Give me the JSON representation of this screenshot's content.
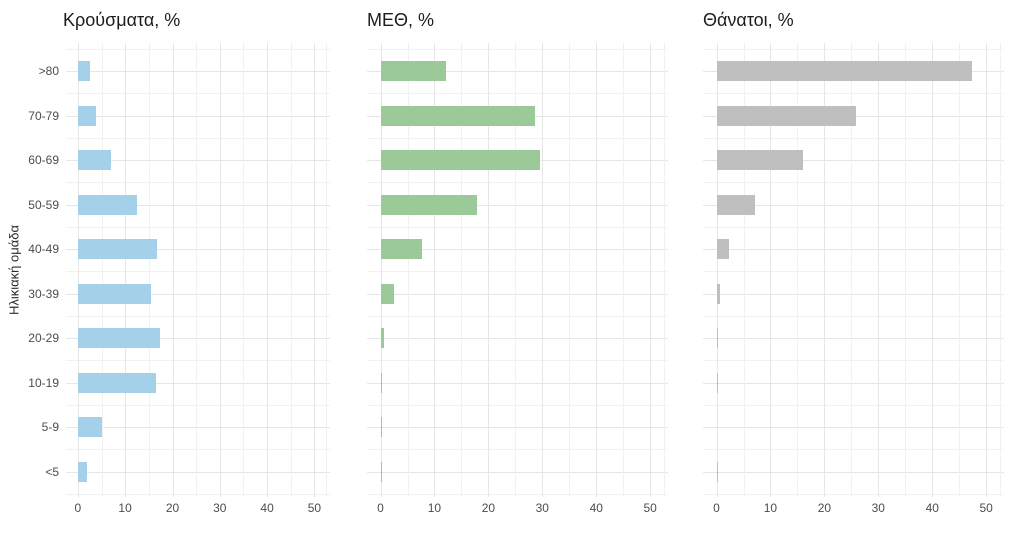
{
  "figure": {
    "background": "#ffffff",
    "y_axis_title": "Ηλικιακή ομάδα",
    "categories": [
      ">80",
      "70-79",
      "60-69",
      "50-59",
      "40-49",
      "30-39",
      "20-29",
      "10-19",
      "5-9",
      "<5"
    ],
    "x_ticks": [
      0,
      10,
      20,
      30,
      40,
      50
    ],
    "grid_major_color": "#e6e6e6",
    "grid_minor_color": "#f1f1f1",
    "text_color": "#4d4d4d",
    "title_color": "#1c1c1c"
  },
  "chart_data": [
    {
      "type": "bar",
      "orientation": "horizontal",
      "title": "Κρούσματα, %",
      "categories": [
        ">80",
        "70-79",
        "60-69",
        "50-59",
        "40-49",
        "30-39",
        "20-29",
        "10-19",
        "5-9",
        "<5"
      ],
      "values": [
        2.6,
        3.8,
        7.1,
        12.5,
        16.8,
        15.4,
        17.3,
        16.6,
        5.2,
        1.9
      ],
      "color": "#a4d1e9",
      "xlabel": "",
      "ylabel": "Ηλικιακή ομάδα",
      "xlim": [
        0,
        50
      ],
      "x_ticks": [
        0,
        10,
        20,
        30,
        40,
        50
      ],
      "grid": true,
      "legend": false
    },
    {
      "type": "bar",
      "orientation": "horizontal",
      "title": "ΜΕΘ, %",
      "categories": [
        ">80",
        "70-79",
        "60-69",
        "50-59",
        "40-49",
        "30-39",
        "20-29",
        "10-19",
        "5-9",
        "<5"
      ],
      "values": [
        12.2,
        28.6,
        29.6,
        17.9,
        7.7,
        2.5,
        0.7,
        0.2,
        0.1,
        0.1
      ],
      "color": "#9bc997",
      "xlabel": "",
      "ylabel": "",
      "xlim": [
        0,
        50
      ],
      "x_ticks": [
        0,
        10,
        20,
        30,
        40,
        50
      ],
      "grid": true,
      "legend": false
    },
    {
      "type": "bar",
      "orientation": "horizontal",
      "title": "Θάνατοι, %",
      "categories": [
        ">80",
        "70-79",
        "60-69",
        "50-59",
        "40-49",
        "30-39",
        "20-29",
        "10-19",
        "5-9",
        "<5"
      ],
      "values": [
        47.4,
        25.8,
        16.1,
        7.2,
        2.3,
        0.7,
        0.1,
        0.1,
        0.0,
        0.1
      ],
      "color": "#bfbfbf",
      "xlabel": "",
      "ylabel": "",
      "xlim": [
        0,
        50
      ],
      "x_ticks": [
        0,
        10,
        20,
        30,
        40,
        50
      ],
      "grid": true,
      "legend": false
    }
  ]
}
